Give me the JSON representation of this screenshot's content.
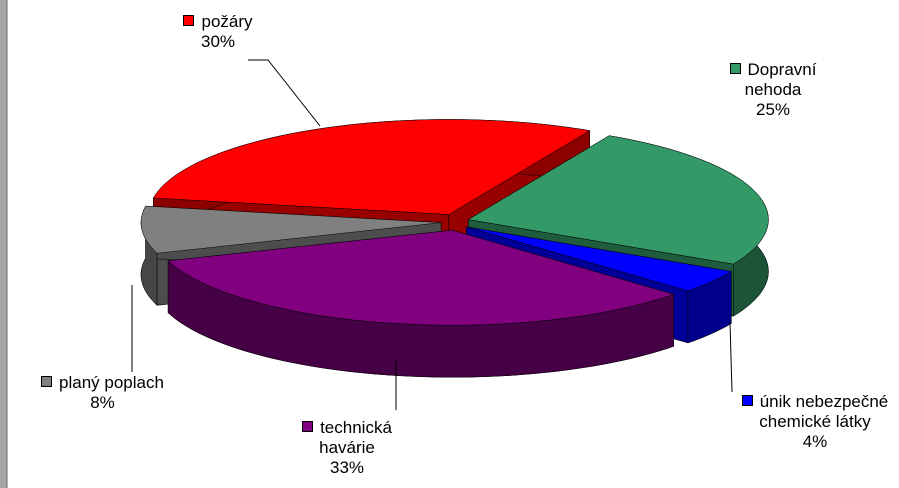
{
  "chart_data": {
    "type": "pie3d",
    "categories": [
      "požáry",
      "Dopravní nehoda",
      "únik nebezpečné chemické látky",
      "technická havárie",
      "planý poplach"
    ],
    "values": [
      30,
      25,
      4,
      33,
      8
    ],
    "value_labels": [
      "30%",
      "25%",
      "4%",
      "33%",
      "8%"
    ],
    "colors": [
      "#ff0000",
      "#339966",
      "#0000ff",
      "#800080",
      "#808080"
    ]
  }
}
